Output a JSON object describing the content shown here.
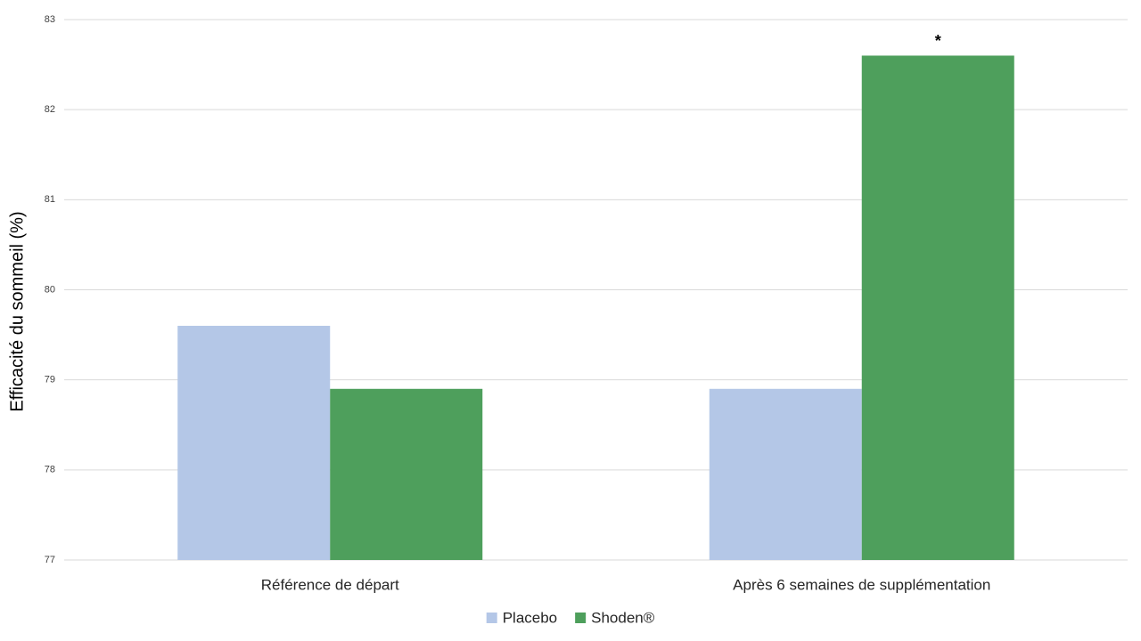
{
  "chart_data": {
    "type": "bar",
    "ylabel": "Efficacité du sommeil (%)",
    "categories": [
      "Référence de départ",
      "Après 6 semaines de supplémentation"
    ],
    "series": [
      {
        "name": "Placebo",
        "color": "#b4c7e7",
        "values": [
          79.6,
          78.9
        ]
      },
      {
        "name": "Shoden®",
        "color": "#4e9f5c",
        "values": [
          78.9,
          82.6
        ]
      }
    ],
    "ylim": [
      77,
      83
    ],
    "yticks": [
      77,
      78,
      79,
      80,
      81,
      82,
      83
    ],
    "grid": true,
    "legend": "bottom",
    "annotations": [
      {
        "text": "*",
        "x": "Après 6 semaines de supplémentation",
        "y": 82.75
      }
    ]
  }
}
